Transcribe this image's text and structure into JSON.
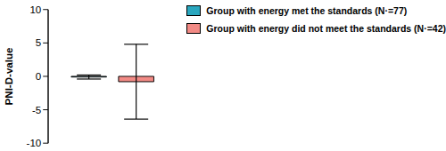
{
  "chart_data": {
    "type": "bar",
    "y_label": "PNI-D-value",
    "categories": [
      null
    ],
    "series": [
      {
        "name": "Group with energy met the standards (N·=77)",
        "color": "#2aa7bf",
        "values": [
          -0.1
        ],
        "error": [
          0.3
        ]
      },
      {
        "name": "Group with energy did not meet the standards (N·=42)",
        "color": "#f28a85",
        "values": [
          -0.8
        ],
        "error": [
          5.6
        ]
      }
    ],
    "ylim": [
      -10,
      10
    ],
    "yticks": [
      -10,
      -5,
      0,
      5,
      10
    ],
    "tick_labels": "y"
  }
}
